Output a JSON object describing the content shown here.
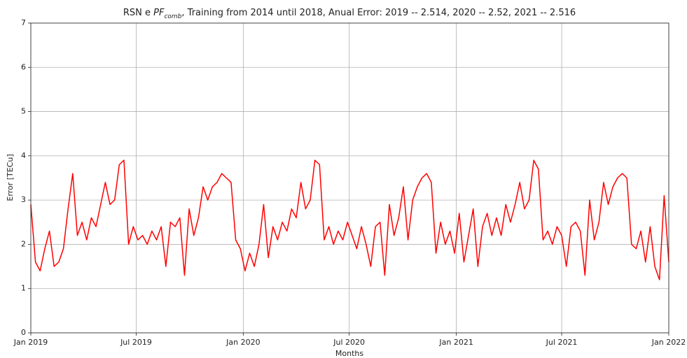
{
  "chart_data": {
    "type": "line",
    "title_parts": [
      "RSN e ",
      "PF",
      "comb",
      ", Training from 2014 until 2018, Anual Error: 2019 -- 2.514, 2020 -- 2.52, 2021 -- 2.516"
    ],
    "xlabel": "Months",
    "ylabel": "Error [TECu]",
    "x": [
      0,
      8,
      16,
      24,
      32,
      40,
      48,
      56,
      64,
      72,
      80,
      88,
      96,
      104,
      112,
      120,
      128,
      136,
      144,
      152,
      160,
      168,
      176,
      184,
      192,
      200,
      208,
      216,
      224,
      232,
      240,
      248,
      256,
      264,
      272,
      280,
      288,
      296,
      304,
      312,
      320,
      328,
      336,
      344,
      352,
      360,
      368,
      376,
      384,
      392,
      400,
      408,
      416,
      424,
      432,
      440,
      448,
      456,
      464,
      472,
      480,
      488,
      496,
      504,
      512,
      520,
      528,
      536,
      544,
      552,
      560,
      568,
      576,
      584,
      592,
      600,
      608,
      616,
      624,
      632,
      640,
      648,
      656,
      664,
      672,
      680,
      688,
      696,
      704,
      712,
      720,
      728,
      736,
      744,
      752,
      760,
      768,
      776,
      784,
      792,
      800,
      808,
      816,
      824,
      832,
      840,
      848,
      856,
      864,
      872,
      880,
      888,
      896,
      904,
      912,
      920,
      928,
      936,
      944,
      952,
      960,
      968,
      976,
      984,
      992,
      1000,
      1008,
      1016,
      1024,
      1032,
      1040,
      1048,
      1056,
      1064,
      1072,
      1080,
      1088,
      1096
    ],
    "series": [
      {
        "name": "error",
        "color": "#ff0000",
        "values": [
          2.9,
          1.6,
          1.4,
          1.9,
          2.3,
          1.5,
          1.6,
          1.9,
          2.8,
          3.6,
          2.2,
          2.5,
          2.1,
          2.6,
          2.4,
          2.9,
          3.4,
          2.9,
          3.0,
          3.8,
          3.9,
          2.0,
          2.4,
          2.1,
          2.2,
          2.0,
          2.3,
          2.1,
          2.4,
          1.5,
          2.5,
          2.4,
          2.6,
          1.3,
          2.8,
          2.2,
          2.6,
          3.3,
          3.0,
          3.3,
          3.4,
          3.6,
          3.5,
          3.4,
          2.1,
          1.9,
          1.4,
          1.8,
          1.5,
          2.0,
          2.9,
          1.7,
          2.4,
          2.1,
          2.5,
          2.3,
          2.8,
          2.6,
          3.4,
          2.8,
          3.0,
          3.9,
          3.8,
          2.1,
          2.4,
          2.0,
          2.3,
          2.1,
          2.5,
          2.2,
          1.9,
          2.4,
          2.0,
          1.5,
          2.4,
          2.5,
          1.3,
          2.9,
          2.2,
          2.6,
          3.3,
          2.1,
          3.0,
          3.3,
          3.5,
          3.6,
          3.4,
          1.8,
          2.5,
          2.0,
          2.3,
          1.8,
          2.7,
          1.6,
          2.2,
          2.8,
          1.5,
          2.4,
          2.7,
          2.2,
          2.6,
          2.2,
          2.9,
          2.5,
          2.9,
          3.4,
          2.8,
          3.0,
          3.9,
          3.7,
          2.1,
          2.3,
          2.0,
          2.4,
          2.2,
          1.5,
          2.4,
          2.5,
          2.3,
          1.3,
          3.0,
          2.1,
          2.5,
          3.4,
          2.9,
          3.3,
          3.5,
          3.6,
          3.5,
          2.0,
          1.9,
          2.3,
          1.6,
          2.4,
          1.5,
          1.2,
          3.1,
          1.6
        ]
      }
    ],
    "xlim": [
      0,
      1096
    ],
    "xticks": [
      {
        "value": 0,
        "label": "Jan 2019"
      },
      {
        "value": 181,
        "label": "Jul 2019"
      },
      {
        "value": 365,
        "label": "Jan 2020"
      },
      {
        "value": 547,
        "label": "Jul 2020"
      },
      {
        "value": 731,
        "label": "Jan 2021"
      },
      {
        "value": 912,
        "label": "Jul 2021"
      },
      {
        "value": 1096,
        "label": "Jan 2022"
      }
    ],
    "ylim": [
      0,
      7
    ],
    "yticks": [
      0,
      1,
      2,
      3,
      4,
      5,
      6,
      7
    ],
    "grid": true
  }
}
